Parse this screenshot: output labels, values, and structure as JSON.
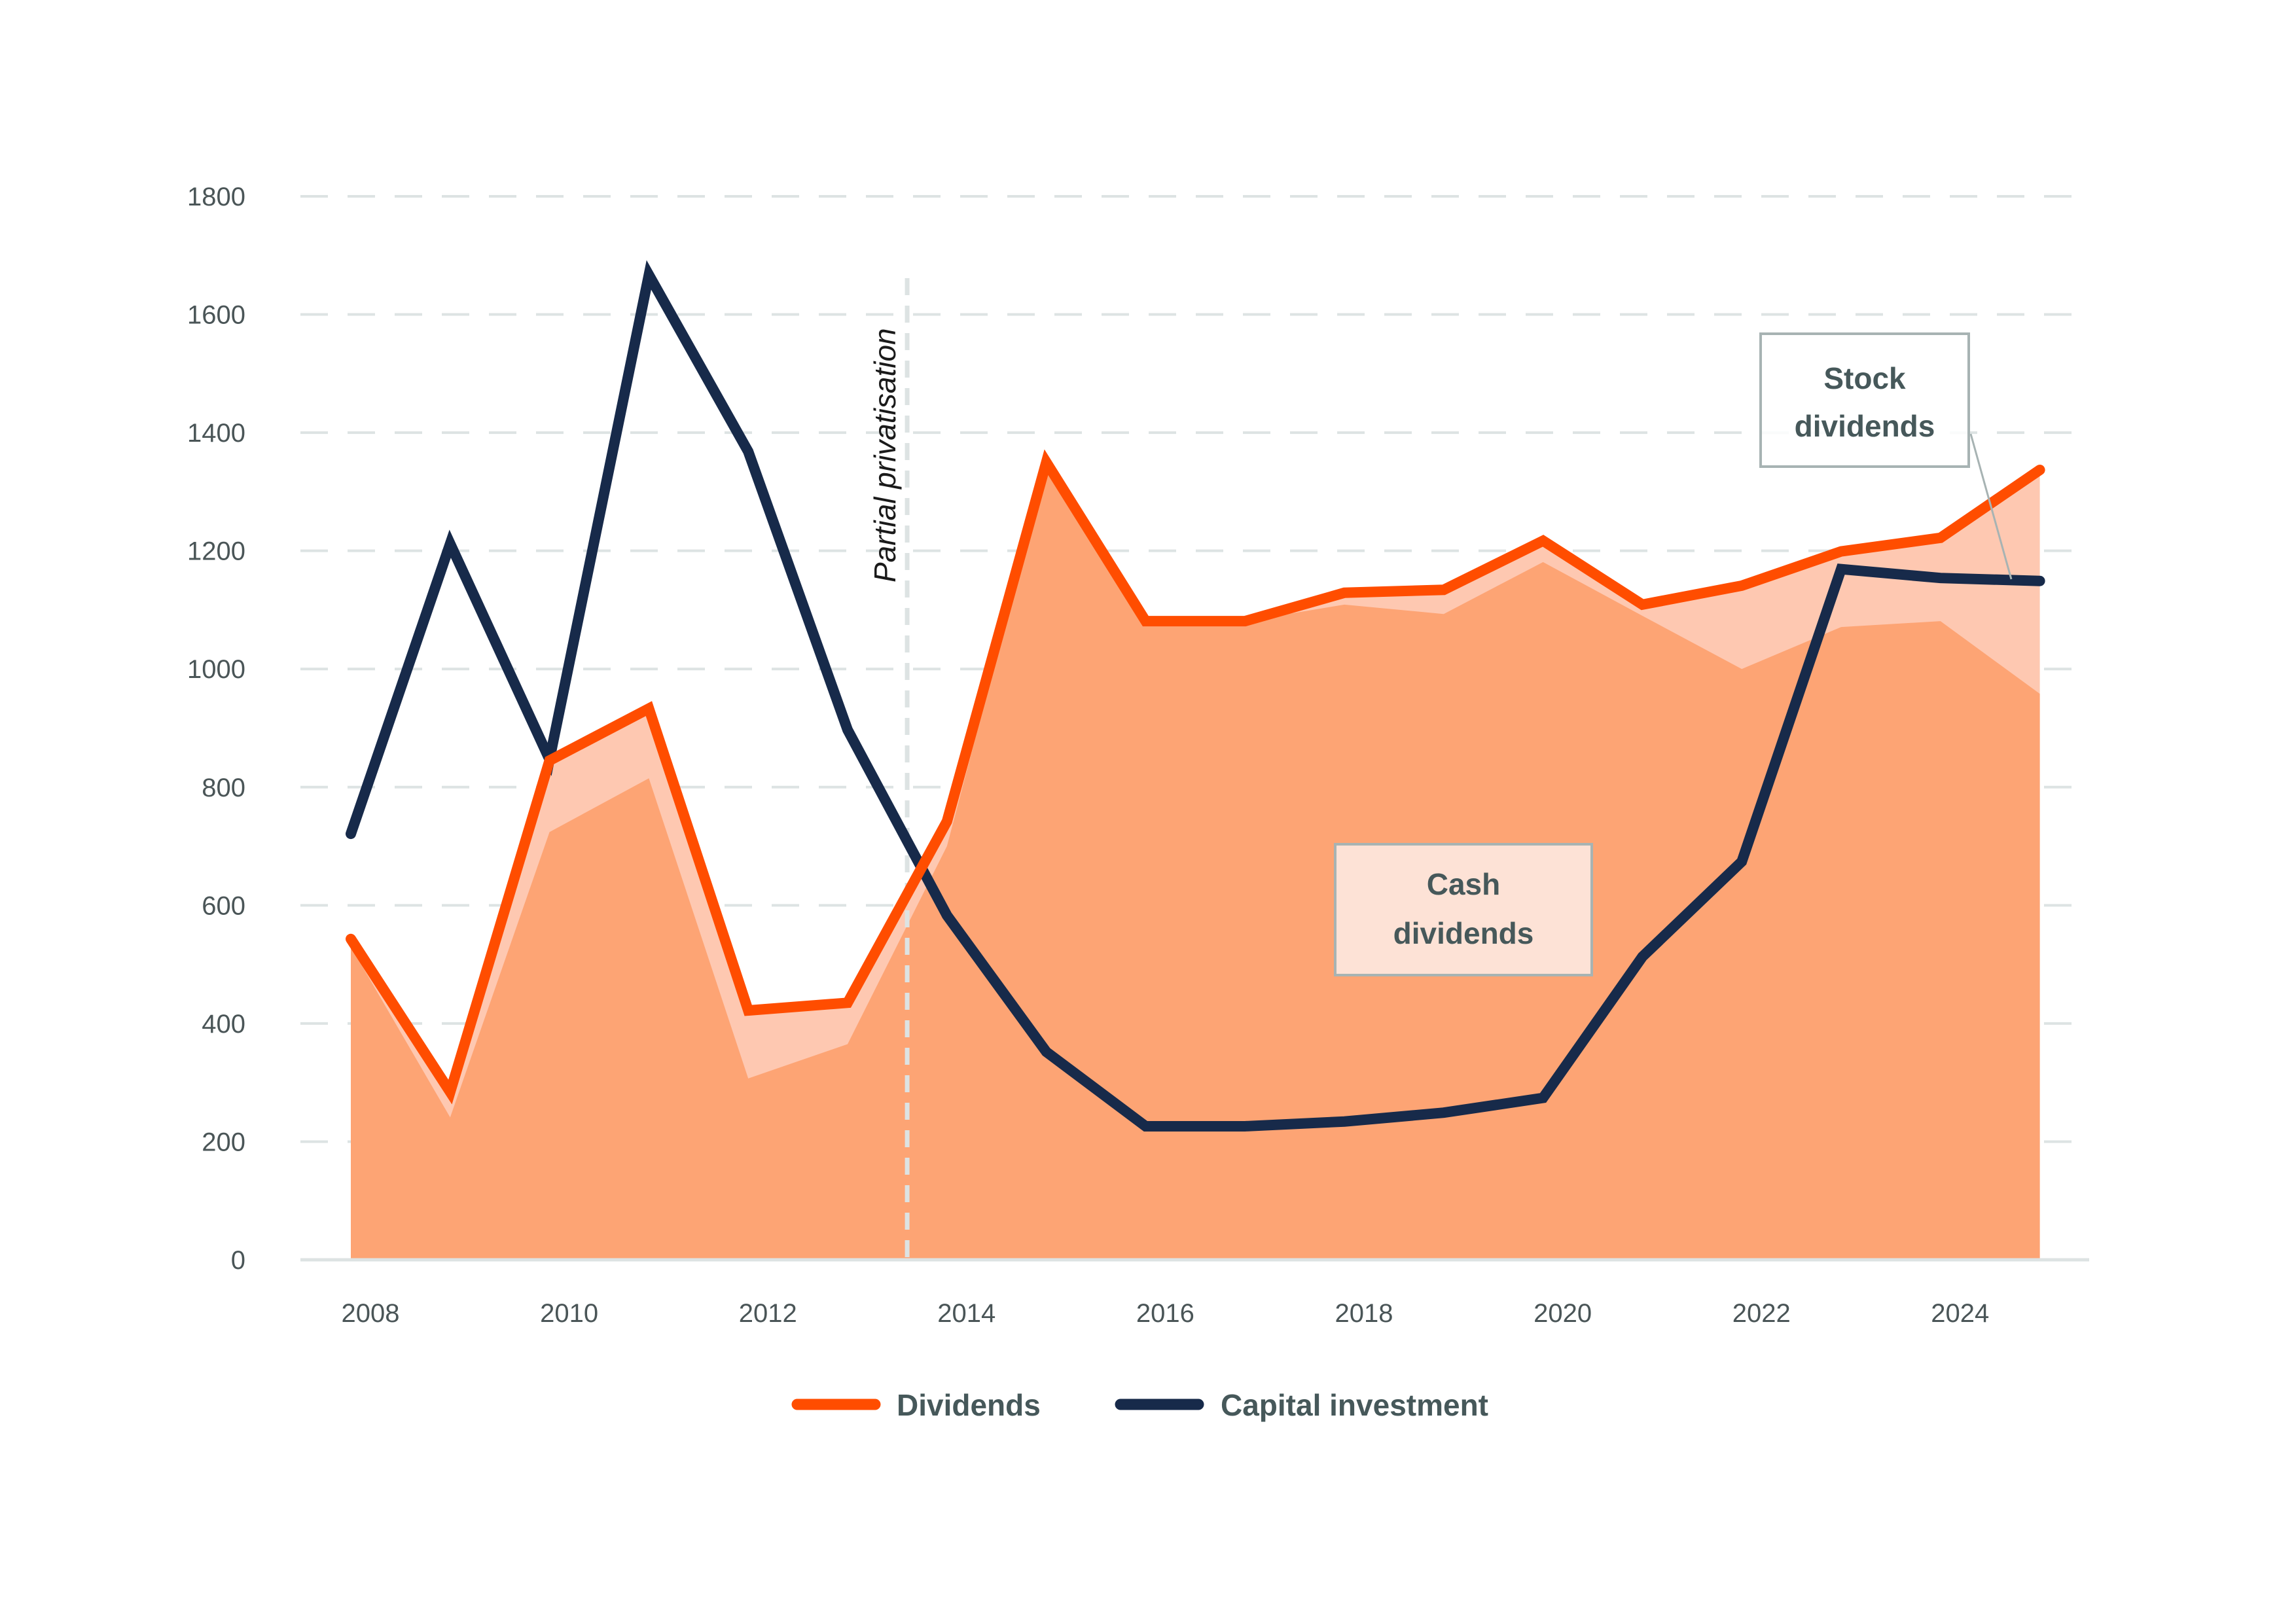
{
  "chart_data": {
    "type": "area",
    "title": "",
    "xlabel": "",
    "ylabel": "",
    "x": [
      2008,
      2009,
      2010,
      2011,
      2012,
      2013,
      2014,
      2015,
      2016,
      2017,
      2018,
      2019,
      2020,
      2021,
      2022,
      2023,
      2024,
      2025
    ],
    "xticks": [
      "2008",
      "2010",
      "2012",
      "2014",
      "2016",
      "2018",
      "2020",
      "2022",
      "2024"
    ],
    "xtick_values": [
      2008,
      2010,
      2012,
      2014,
      2016,
      2018,
      2020,
      2022,
      2024
    ],
    "ylim": [
      0,
      1800
    ],
    "yticks": [
      "0",
      "200",
      "400",
      "600",
      "800",
      "1000",
      "1200",
      "1400",
      "1600",
      "1800"
    ],
    "ytick_values": [
      0,
      200,
      400,
      600,
      800,
      1000,
      1200,
      1400,
      1600,
      1800
    ],
    "grid": "horizontal-dashed",
    "series": [
      {
        "name": "Dividends",
        "kind": "line",
        "color": "#ff4d00",
        "values": [
          543,
          284,
          845,
          933,
          422,
          435,
          742,
          1350,
          1081,
          1081,
          1129,
          1134,
          1217,
          1109,
          1141,
          1199,
          1222,
          1337
        ]
      },
      {
        "name": "Capital investment",
        "kind": "line",
        "color": "#172a4a",
        "values": [
          721,
          1212,
          847,
          1667,
          1368,
          897,
          583,
          352,
          226,
          226,
          234,
          249,
          274,
          513,
          674,
          1169,
          1154,
          1149
        ]
      },
      {
        "name": "Cash dividends",
        "kind": "area",
        "color": "#fda474",
        "values": [
          530,
          241,
          724,
          815,
          307,
          365,
          700,
          1340,
          1081,
          1081,
          1109,
          1093,
          1181,
          1090,
          1000,
          1071,
          1081,
          958
        ]
      },
      {
        "name": "Stock dividends",
        "kind": "area",
        "color": "#fec8b1",
        "stacked_on": "Cash dividends",
        "total": "Dividends"
      }
    ],
    "annotations": [
      {
        "text": "Partial privatisation",
        "type": "vertical-line",
        "x": 2013.6
      },
      {
        "text_lines": [
          "Cash",
          "dividends"
        ],
        "type": "label-box"
      },
      {
        "text_lines": [
          "Stock",
          "dividends"
        ],
        "type": "label-box-with-leader"
      }
    ],
    "legend": {
      "placement": "bottom-center",
      "items": [
        {
          "label": "Dividends",
          "color": "#ff4d00"
        },
        {
          "label": "Capital investment",
          "color": "#172a4a"
        }
      ]
    }
  }
}
